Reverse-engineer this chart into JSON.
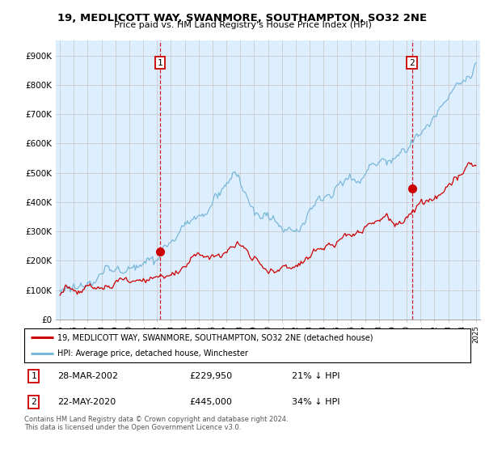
{
  "title": "19, MEDLICOTT WAY, SWANMORE, SOUTHAMPTON, SO32 2NE",
  "subtitle": "Price paid vs. HM Land Registry's House Price Index (HPI)",
  "ylim": [
    0,
    950000
  ],
  "yticks": [
    0,
    100000,
    200000,
    300000,
    400000,
    500000,
    600000,
    700000,
    800000,
    900000
  ],
  "ytick_labels": [
    "£0",
    "£100K",
    "£200K",
    "£300K",
    "£400K",
    "£500K",
    "£600K",
    "£700K",
    "£800K",
    "£900K"
  ],
  "hpi_color": "#7ab8d8",
  "price_color": "#cc0000",
  "sale1_date_x": 2002.23,
  "sale1_price": 229950,
  "sale2_date_x": 2020.38,
  "sale2_price": 445000,
  "xlim_left": 1994.7,
  "xlim_right": 2025.3,
  "legend_label_price": "19, MEDLICOTT WAY, SWANMORE, SOUTHAMPTON, SO32 2NE (detached house)",
  "legend_label_hpi": "HPI: Average price, detached house, Winchester",
  "table_row1": [
    "1",
    "28-MAR-2002",
    "£229,950",
    "21% ↓ HPI"
  ],
  "table_row2": [
    "2",
    "22-MAY-2020",
    "£445,000",
    "34% ↓ HPI"
  ],
  "footnote": "Contains HM Land Registry data © Crown copyright and database right 2024.\nThis data is licensed under the Open Government Licence v3.0.",
  "grid_color": "#cccccc",
  "shaded_color": "#ddeeff"
}
